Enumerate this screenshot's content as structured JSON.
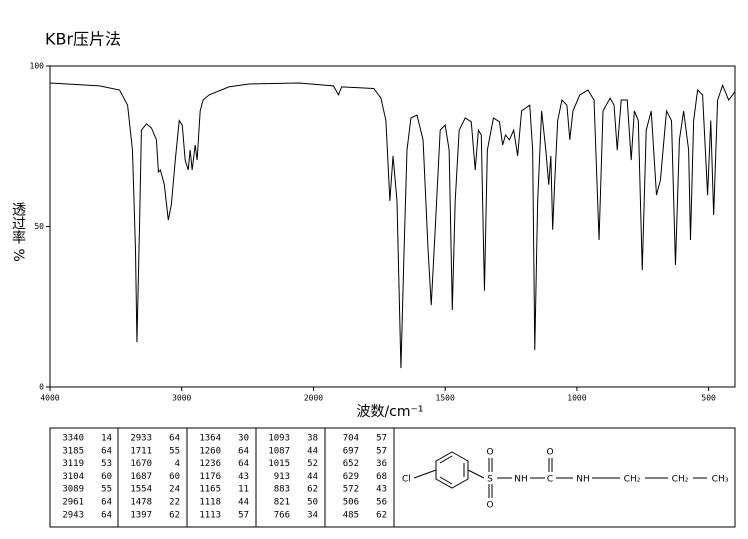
{
  "chart_data": {
    "type": "line",
    "title": "KBr压片法",
    "y_label": "透过率 %",
    "x_label": "波数/cm⁻¹",
    "color": "#000000",
    "xlim": [
      4000,
      400
    ],
    "x_scale_break": 2000,
    "x_scale_factor_below_break": 2,
    "xticks": [
      4000,
      3000,
      2000,
      1500,
      1000,
      500
    ],
    "ylim": [
      0,
      100
    ],
    "yticks": [
      0,
      50,
      100
    ],
    "grid": false,
    "x": [
      4000,
      3623,
      3472,
      3411,
      3374,
      3351,
      3340,
      3321,
      3306,
      3268,
      3230,
      3192,
      3177,
      3162,
      3132,
      3102,
      3079,
      3049,
      3019,
      2996,
      2974,
      2951,
      2936,
      2921,
      2898,
      2883,
      2860,
      2838,
      2792,
      2642,
      2491,
      2113,
      1924,
      1905,
      1893,
      1771,
      1744,
      1725,
      1710,
      1698,
      1683,
      1668,
      1656,
      1645,
      1630,
      1607,
      1584,
      1565,
      1553,
      1538,
      1519,
      1500,
      1485,
      1473,
      1462,
      1447,
      1424,
      1401,
      1386,
      1374,
      1363,
      1351,
      1340,
      1317,
      1294,
      1282,
      1271,
      1256,
      1240,
      1225,
      1210,
      1179,
      1168,
      1160,
      1149,
      1134,
      1118,
      1107,
      1099,
      1092,
      1084,
      1073,
      1057,
      1038,
      1027,
      1015,
      989,
      958,
      935,
      916,
      901,
      874,
      859,
      847,
      832,
      809,
      794,
      782,
      767,
      752,
      737,
      718,
      698,
      683,
      660,
      641,
      626,
      611,
      595,
      576,
      569,
      557,
      542,
      523,
      504,
      492,
      481,
      466,
      447,
      424,
      400
    ],
    "values": [
      94.7,
      93.8,
      92.5,
      87.8,
      73.8,
      42.7,
      14,
      49,
      80,
      82,
      80.7,
      77,
      67,
      67.6,
      63,
      52,
      56.7,
      70.7,
      83,
      81.6,
      70.7,
      67.6,
      73.8,
      67.6,
      75.4,
      70.7,
      86,
      89.4,
      91,
      93.5,
      94.4,
      94.7,
      93.8,
      91,
      93.5,
      93,
      90,
      83,
      58,
      72,
      58,
      5.9,
      42.7,
      73.8,
      83.8,
      84.7,
      77,
      42.7,
      25.5,
      49,
      80,
      81.6,
      73.8,
      24,
      58,
      80,
      83.8,
      82.6,
      67.6,
      80,
      78.5,
      30,
      73.8,
      83.8,
      82.6,
      75.4,
      78.5,
      77,
      80,
      72,
      86,
      87.8,
      73.8,
      11.5,
      58,
      86,
      73.8,
      63,
      72,
      49,
      64.5,
      83,
      89.4,
      87.8,
      77,
      86,
      91,
      92.5,
      89.4,
      45.8,
      86,
      90,
      87.8,
      73.8,
      89.4,
      89.4,
      70.7,
      86,
      83,
      36.4,
      80,
      86,
      59.8,
      64.5,
      86,
      83,
      38,
      77,
      86,
      73.8,
      45.8,
      83,
      92.5,
      91,
      59.8,
      83,
      53.6,
      89.4,
      94,
      89.4,
      92
    ]
  },
  "peak_table": [
    [
      [
        3340,
        14
      ],
      [
        3185,
        64
      ],
      [
        3119,
        53
      ],
      [
        3104,
        60
      ],
      [
        3089,
        55
      ],
      [
        2961,
        64
      ],
      [
        2943,
        64
      ]
    ],
    [
      [
        2933,
        64
      ],
      [
        1711,
        55
      ],
      [
        1670,
        4
      ],
      [
        1687,
        60
      ],
      [
        1554,
        24
      ],
      [
        1478,
        22
      ],
      [
        1397,
        62
      ]
    ],
    [
      [
        1364,
        30
      ],
      [
        1260,
        64
      ],
      [
        1236,
        64
      ],
      [
        1176,
        43
      ],
      [
        1165,
        11
      ],
      [
        1118,
        44
      ],
      [
        1113,
        57
      ]
    ],
    [
      [
        1093,
        38
      ],
      [
        1087,
        44
      ],
      [
        1015,
        52
      ],
      [
        913,
        44
      ],
      [
        883,
        62
      ],
      [
        821,
        50
      ],
      [
        766,
        34
      ]
    ],
    [
      [
        704,
        57
      ],
      [
        697,
        57
      ],
      [
        652,
        36
      ],
      [
        629,
        68
      ],
      [
        572,
        43
      ],
      [
        506,
        56
      ],
      [
        485,
        62
      ]
    ]
  ],
  "structure": {
    "cl": "Cl",
    "s": "S",
    "o1": "O",
    "o2": "O",
    "nh1": "NH",
    "c": "C",
    "o3": "O",
    "nh2": "NH",
    "ch2a": "CH₂",
    "ch2b": "CH₂",
    "ch3": "CH₃"
  }
}
